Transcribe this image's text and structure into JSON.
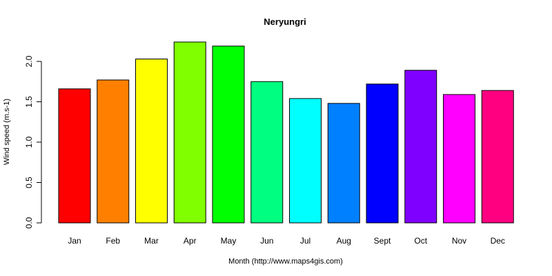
{
  "chart_data": {
    "type": "bar",
    "title": "Neryungri",
    "xlabel": "Month (http://www.maps4gis.com)",
    "ylabel": "Wind speed (m.s-1)",
    "categories": [
      "Jan",
      "Feb",
      "Mar",
      "Apr",
      "May",
      "Jun",
      "Jul",
      "Aug",
      "Sept",
      "Oct",
      "Nov",
      "Dec"
    ],
    "values": [
      1.66,
      1.77,
      2.03,
      2.24,
      2.19,
      1.75,
      1.54,
      1.48,
      1.72,
      1.89,
      1.59,
      1.64
    ],
    "colors": [
      "#ff0000",
      "#ff8000",
      "#ffff00",
      "#80ff00",
      "#00ff00",
      "#00ff80",
      "#00ffff",
      "#0080ff",
      "#0000ff",
      "#8000ff",
      "#ff00ff",
      "#ff0080"
    ],
    "yticks": [
      "0.0",
      "0.5",
      "1.0",
      "1.5",
      "2.0"
    ],
    "ylim": [
      0,
      2.24
    ],
    "grid": false,
    "legend": "none"
  }
}
